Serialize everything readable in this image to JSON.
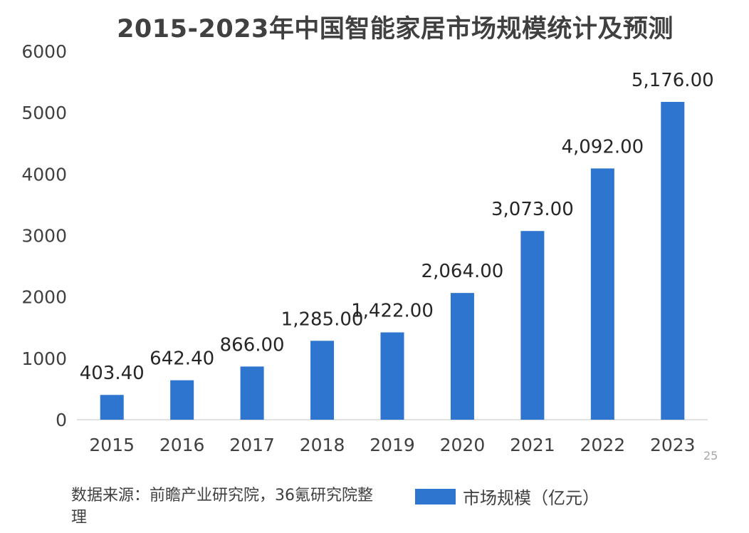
{
  "chart_data": {
    "type": "bar",
    "title": "2015-2023年中国智能家居市场规模统计及预测",
    "categories": [
      "2015",
      "2016",
      "2017",
      "2018",
      "2019",
      "2020",
      "2021",
      "2022",
      "2023"
    ],
    "series": [
      {
        "name": "市场规模（亿元）",
        "values": [
          403.4,
          642.4,
          866.0,
          1285.0,
          1422.0,
          2064.0,
          3073.0,
          4092.0,
          5176.0
        ],
        "labels": [
          "403.40",
          "642.40",
          "866.00",
          "1,285.00",
          "1,422.00",
          "2,064.00",
          "3,073.00",
          "4,092.00",
          "5,176.00"
        ]
      }
    ],
    "yticks": [
      "0",
      "1000",
      "2000",
      "3000",
      "4000",
      "5000",
      "6000"
    ],
    "ylim": [
      0,
      6000
    ],
    "grid": false,
    "legend_position": "bottom",
    "bar_color": "#2e75cf"
  },
  "source_note": "数据来源：前瞻产业研究院，36氪研究院整理",
  "page_number": "25"
}
